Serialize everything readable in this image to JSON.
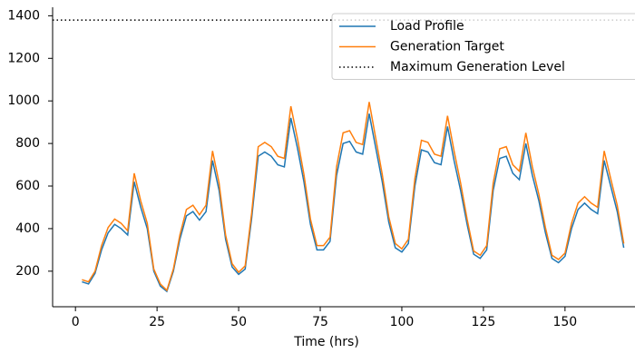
{
  "chart_data": {
    "type": "line",
    "xlabel": "Time (hrs)",
    "x": [
      2,
      4,
      6,
      8,
      10,
      12,
      14,
      16,
      18,
      20,
      22,
      24,
      26,
      28,
      30,
      32,
      34,
      36,
      38,
      40,
      42,
      44,
      46,
      48,
      50,
      52,
      54,
      56,
      58,
      60,
      62,
      64,
      66,
      68,
      70,
      72,
      74,
      76,
      78,
      80,
      82,
      84,
      86,
      88,
      90,
      92,
      94,
      96,
      98,
      100,
      102,
      104,
      106,
      108,
      110,
      112,
      114,
      116,
      118,
      120,
      122,
      124,
      126,
      128,
      130,
      132,
      134,
      136,
      138,
      140,
      142,
      144,
      146,
      148,
      150,
      152,
      154,
      156,
      158,
      160,
      162,
      164,
      166,
      168
    ],
    "series": [
      {
        "name": "Load Profile",
        "color": "#1f77b4",
        "values": [
          150,
          140,
          190,
          300,
          380,
          420,
          400,
          370,
          620,
          500,
          400,
          200,
          130,
          105,
          200,
          350,
          460,
          480,
          440,
          480,
          720,
          580,
          350,
          220,
          185,
          210,
          450,
          740,
          760,
          740,
          700,
          690,
          920,
          780,
          620,
          420,
          300,
          300,
          340,
          650,
          800,
          810,
          760,
          750,
          940,
          780,
          620,
          430,
          310,
          290,
          330,
          600,
          770,
          760,
          710,
          700,
          880,
          720,
          580,
          420,
          280,
          260,
          300,
          580,
          730,
          740,
          660,
          630,
          800,
          650,
          530,
          380,
          260,
          240,
          270,
          400,
          490,
          520,
          490,
          470,
          720,
          600,
          480,
          310
        ]
      },
      {
        "name": "Generation Target",
        "color": "#ff7f0e",
        "values": [
          160,
          150,
          200,
          320,
          405,
          445,
          425,
          390,
          660,
          530,
          425,
          210,
          140,
          110,
          210,
          370,
          490,
          510,
          465,
          510,
          765,
          615,
          370,
          235,
          195,
          225,
          475,
          785,
          805,
          785,
          740,
          730,
          975,
          825,
          655,
          445,
          320,
          320,
          360,
          690,
          850,
          860,
          805,
          795,
          995,
          825,
          655,
          455,
          330,
          305,
          350,
          635,
          815,
          805,
          750,
          740,
          930,
          765,
          615,
          445,
          295,
          275,
          320,
          615,
          775,
          785,
          700,
          670,
          850,
          690,
          560,
          405,
          275,
          255,
          285,
          425,
          520,
          550,
          520,
          500,
          765,
          635,
          510,
          330
        ]
      }
    ],
    "reference_lines": [
      {
        "name": "Maximum Generation Level",
        "value": 1380,
        "color": "#000000"
      }
    ],
    "xlim": [
      -7,
      172
    ],
    "ylim": [
      33,
      1440
    ],
    "xticks": [
      0,
      25,
      50,
      75,
      100,
      125,
      150,
      175
    ],
    "yticks": [
      200,
      400,
      600,
      800,
      1000,
      1200,
      1400
    ],
    "legend": "upper right"
  }
}
